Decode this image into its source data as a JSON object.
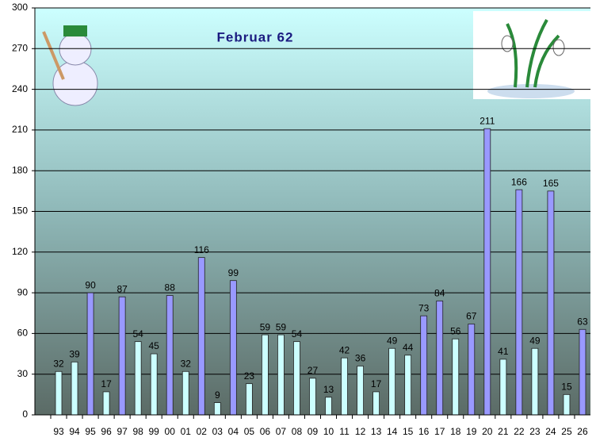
{
  "chart_data": {
    "type": "bar",
    "title": "Februar 62",
    "categories": [
      "93",
      "94",
      "95",
      "96",
      "97",
      "98",
      "99",
      "00",
      "01",
      "02",
      "03",
      "04",
      "05",
      "06",
      "07",
      "08",
      "09",
      "10",
      "11",
      "12",
      "13",
      "14",
      "15",
      "16",
      "17",
      "18",
      "19",
      "20",
      "21",
      "22",
      "23",
      "24",
      "25",
      "26"
    ],
    "values": [
      32,
      39,
      90,
      17,
      87,
      54,
      45,
      88,
      32,
      116,
      9,
      99,
      23,
      59,
      59,
      54,
      27,
      13,
      42,
      36,
      17,
      49,
      44,
      73,
      84,
      56,
      67,
      211,
      41,
      166,
      49,
      165,
      15,
      63
    ],
    "colors": [
      "#ccffff",
      "#ccffff",
      "#9999ff",
      "#ccffff",
      "#9999ff",
      "#ccffff",
      "#ccffff",
      "#9999ff",
      "#ccffff",
      "#9999ff",
      "#ccffff",
      "#9999ff",
      "#ccffff",
      "#ccffff",
      "#ccffff",
      "#ccffff",
      "#ccffff",
      "#ccffff",
      "#ccffff",
      "#ccffff",
      "#ccffff",
      "#ccffff",
      "#ccffff",
      "#9999ff",
      "#9999ff",
      "#ccffff",
      "#9999ff",
      "#9999ff",
      "#ccffff",
      "#9999ff",
      "#ccffff",
      "#9999ff",
      "#ccffff",
      "#9999ff"
    ],
    "ylim": [
      0,
      300
    ],
    "yticks": [
      0,
      30,
      60,
      90,
      120,
      150,
      180,
      210,
      240,
      270,
      300
    ],
    "grid": true
  }
}
